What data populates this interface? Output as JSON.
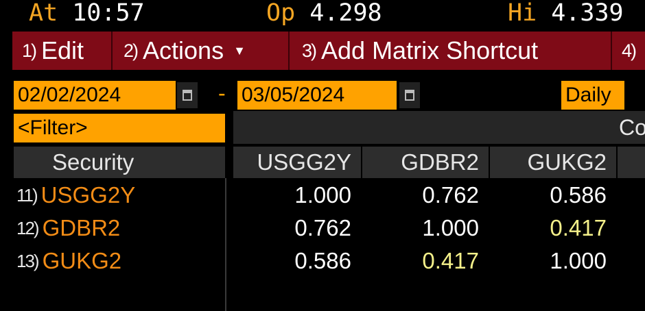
{
  "quote": {
    "at_label": "At",
    "at_value": "10:57",
    "open_label": "Op",
    "open_value": "4.298",
    "high_label": "Hi",
    "high_value": "4.339"
  },
  "menu": {
    "items": [
      {
        "num": "1)",
        "label": "Edit"
      },
      {
        "num": "2)",
        "label": "Actions"
      },
      {
        "num": "3)",
        "label": "Add Matrix Shortcut"
      },
      {
        "num": "4)",
        "label": ""
      }
    ]
  },
  "dates": {
    "start": "02/02/2024",
    "separator": "-",
    "end": "03/05/2024",
    "frequency": "Daily"
  },
  "filter": {
    "label": "<Filter>",
    "band_text": "Co"
  },
  "table": {
    "headers": [
      "Security",
      "USGG2Y",
      "GDBR2",
      "GUKG2"
    ],
    "rows": [
      {
        "num": "11)",
        "security": "USGG2Y",
        "values": [
          "1.000",
          "0.762",
          "0.586"
        ]
      },
      {
        "num": "12)",
        "security": "GDBR2",
        "values": [
          "0.762",
          "1.000",
          "0.417"
        ]
      },
      {
        "num": "13)",
        "security": "GUKG2",
        "values": [
          "0.586",
          "0.417",
          "1.000"
        ]
      }
    ]
  },
  "colors": {
    "accent_orange": "#ffa200",
    "menu_red": "#7f0b17",
    "highlight_yellow": "#f4f08a"
  }
}
